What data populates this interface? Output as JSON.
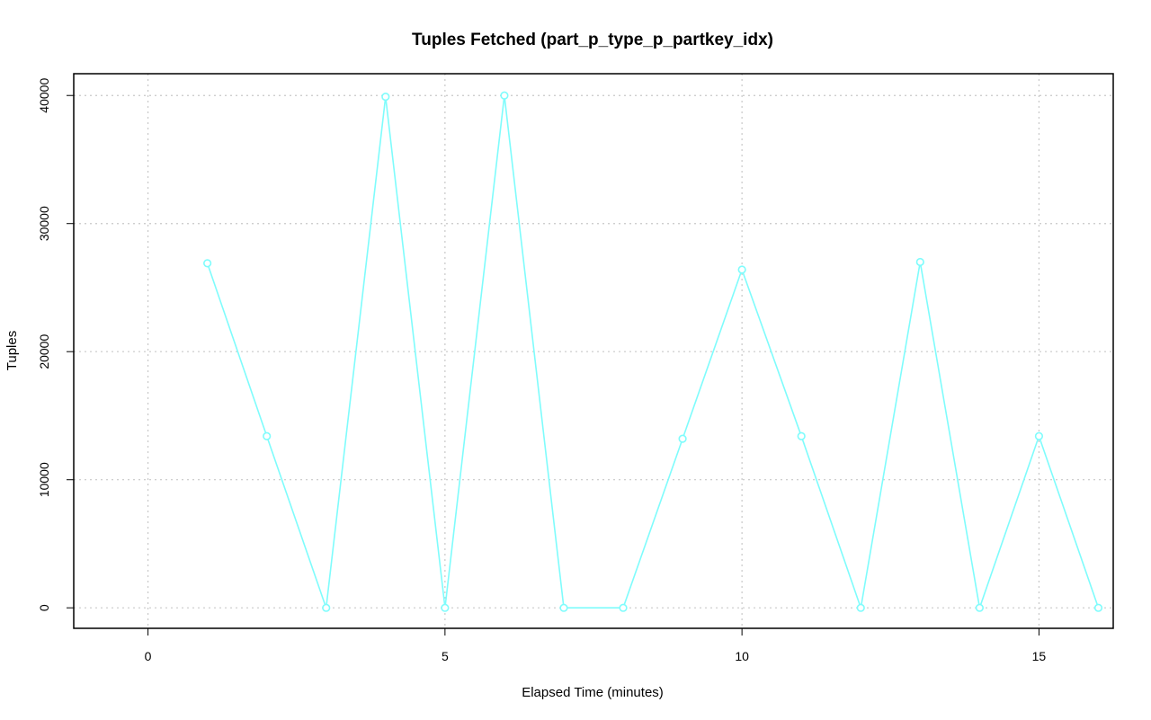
{
  "chart_data": {
    "type": "line",
    "title": "Tuples Fetched (part_p_type_p_partkey_idx)",
    "xlabel": "Elapsed Time (minutes)",
    "ylabel": "Tuples",
    "xlim": [
      -1.25,
      16.25
    ],
    "ylim": [
      -1600,
      41700
    ],
    "x_ticks": [
      0,
      5,
      10,
      15
    ],
    "y_ticks": [
      0,
      10000,
      20000,
      30000,
      40000
    ],
    "x_tick_labels": [
      "0",
      "5",
      "10",
      "15"
    ],
    "y_tick_labels": [
      "0",
      "10000",
      "20000",
      "30000",
      "40000"
    ],
    "grid": true,
    "legend": "none",
    "series": [
      {
        "color": "#7ffcfc",
        "marker": "circle",
        "x": [
          1,
          2,
          3,
          4,
          5,
          6,
          7,
          8,
          9,
          10,
          11,
          12,
          13,
          14,
          15,
          16
        ],
        "y": [
          26900,
          13400,
          0,
          39900,
          0,
          40000,
          0,
          0,
          13200,
          26400,
          13400,
          0,
          27000,
          0,
          13400,
          0
        ]
      }
    ]
  }
}
